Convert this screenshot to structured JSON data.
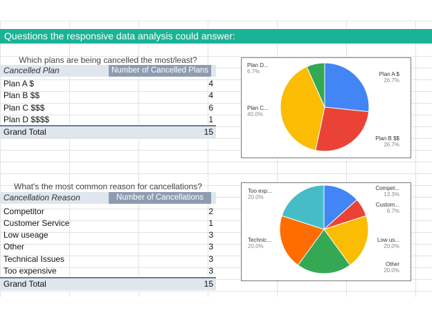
{
  "banner": "Questions the responsive data analysis could answer:",
  "plans": {
    "title": "Which plans are being cancelled the most/least?",
    "header": [
      "Cancelled Plan",
      "Number of Cancelled Plans"
    ],
    "rows": [
      {
        "label": "Plan A $",
        "value": "4"
      },
      {
        "label": "Plan B $$",
        "value": "4"
      },
      {
        "label": "Plan C $$$",
        "value": "6"
      },
      {
        "label": "Plan D $$$$",
        "value": "1"
      }
    ],
    "total": {
      "label": "Grand Total",
      "value": "15"
    }
  },
  "reasons": {
    "title": "What's the most common reason for cancellations?",
    "header": [
      "Cancellation Reason",
      "Number of Cancellations"
    ],
    "rows": [
      {
        "label": "Competitor",
        "value": "2"
      },
      {
        "label": "Customer Service",
        "value": "1"
      },
      {
        "label": "Low useage",
        "value": "3"
      },
      {
        "label": "Other",
        "value": "3"
      },
      {
        "label": "Technical Issues",
        "value": "3"
      },
      {
        "label": "Too expensive",
        "value": "3"
      }
    ],
    "total": {
      "label": "Grand Total",
      "value": "15"
    }
  },
  "chart_data": [
    {
      "type": "pie",
      "title": "",
      "slices": [
        {
          "label": "Plan A $",
          "value": 4,
          "pct": "26.7%",
          "color": "#4285f4"
        },
        {
          "label": "Plan B $$",
          "value": 4,
          "pct": "26.7%",
          "color": "#ea4335"
        },
        {
          "label": "Plan C...",
          "value": 6,
          "pct": "40.0%",
          "color": "#fbbc04"
        },
        {
          "label": "Plan D...",
          "value": 1,
          "pct": "6.7%",
          "color": "#34a853"
        }
      ]
    },
    {
      "type": "pie",
      "title": "",
      "slices": [
        {
          "label": "Compet...",
          "value": 2,
          "pct": "13.3%",
          "color": "#4285f4"
        },
        {
          "label": "Custom...",
          "value": 1,
          "pct": "6.7%",
          "color": "#ea4335"
        },
        {
          "label": "Low us...",
          "value": 3,
          "pct": "20.0%",
          "color": "#fbbc04"
        },
        {
          "label": "Other",
          "value": 3,
          "pct": "20.0%",
          "color": "#34a853"
        },
        {
          "label": "Technic...",
          "value": 3,
          "pct": "20.0%",
          "color": "#ff6d01"
        },
        {
          "label": "Too exp...",
          "value": 3,
          "pct": "20.0%",
          "color": "#46bdc6"
        }
      ]
    }
  ]
}
